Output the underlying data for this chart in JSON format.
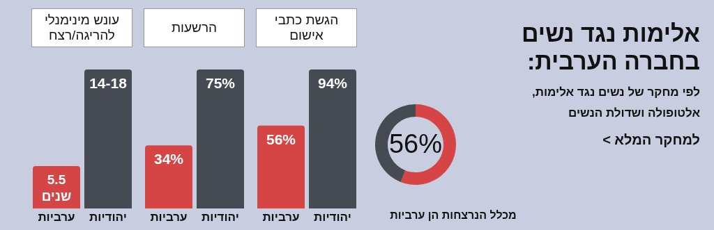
{
  "chart_data": [
    {
      "type": "other",
      "title": "אלימות נגד נשים בחברה הערבית:",
      "subtitle": "לפי  מחקר של נשים נגד אלימות, אלטופולה ושדולת הנשים",
      "annotations": [
        "למחקר המלא >"
      ]
    },
    {
      "type": "donut",
      "categories": [
        null,
        null
      ],
      "values": [
        56,
        44
      ],
      "colors": [
        "#d64545",
        "#464a52"
      ],
      "value_labels": [
        "56%",
        null
      ],
      "annotations": [
        "מכלל הנרצחות הן ערביות"
      ]
    },
    {
      "type": "bar",
      "title": "הגשת כתבי אישום",
      "categories": [
        "ערביות",
        "יהודיות"
      ],
      "values": [
        56,
        94
      ],
      "colors": [
        "#d64545",
        "#464a52"
      ],
      "value_labels": [
        "56%",
        "94%"
      ],
      "tick_labels": "x"
    },
    {
      "type": "bar",
      "title": "הרשעות",
      "categories": [
        "ערביות",
        "יהודיות"
      ],
      "values": [
        34,
        75
      ],
      "colors": [
        "#d64545",
        "#464a52"
      ],
      "value_labels": [
        "34%",
        "75%"
      ],
      "tick_labels": "x"
    },
    {
      "type": "bar",
      "title": "עונש מינימנלי להריגה/רצח",
      "categories": [
        "ערביות",
        "יהודיות"
      ],
      "values": [
        5.5,
        18
      ],
      "colors": [
        "#d64545",
        "#464a52"
      ],
      "value_labels": [
        "5.5 שנים",
        "14-18"
      ],
      "tick_labels": "x"
    }
  ]
}
